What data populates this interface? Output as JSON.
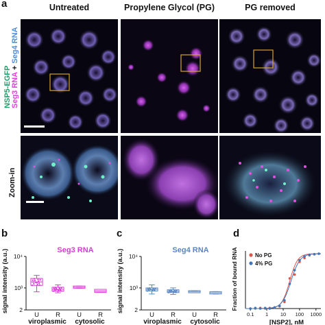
{
  "panel_a": {
    "letter": "a",
    "columns": [
      "Untreated",
      "Propylene Glycol (PG)",
      "PG removed"
    ],
    "row_zoom_label": "Zoom-in",
    "channel_label": {
      "part1": "NSP5-EGFP",
      "part2": "Seg3 RNA",
      "plus": " + ",
      "part3": "Seg4 RNA",
      "colors": {
        "nsp5": "#1f9e6b",
        "seg3": "#e33fe0",
        "seg4": "#4f8fd6",
        "plus": "#111111"
      }
    }
  },
  "panel_b": {
    "letter": "b",
    "title": "Seg3 RNA",
    "ylabel": "signal intensity (a.u.)",
    "color": "#d93ad6",
    "chart_data": {
      "type": "box",
      "yscale": "log",
      "yticks": [
        "2",
        "10³",
        "10⁴"
      ],
      "categories": [
        "U",
        "R",
        "U",
        "R"
      ],
      "groups": [
        "viroplasmic",
        "cytosolic"
      ],
      "boxes": [
        {
          "cat": "U",
          "q1": 1200,
          "median": 1550,
          "q3": 2000,
          "min": 750,
          "max": 2500
        },
        {
          "cat": "R",
          "q1": 790,
          "median": 900,
          "q3": 1050,
          "min": 700,
          "max": 1250
        },
        {
          "cat": "U",
          "q1": 980,
          "median": 1050,
          "q3": 1150,
          "min": 980,
          "max": 1150
        },
        {
          "cat": "R",
          "q1": 720,
          "median": 800,
          "q3": 900,
          "min": 720,
          "max": 900
        }
      ]
    }
  },
  "panel_c": {
    "letter": "c",
    "title": "Seg4 RNA",
    "ylabel": "signal intensity (a.u.)",
    "color": "#5a86c2",
    "chart_data": {
      "type": "box",
      "yscale": "log",
      "yticks": [
        "2",
        "10³",
        "10⁴"
      ],
      "categories": [
        "U",
        "R",
        "U",
        "R"
      ],
      "groups": [
        "viroplasmic",
        "cytosolic"
      ],
      "boxes": [
        {
          "cat": "U",
          "q1": 800,
          "median": 900,
          "q3": 1000,
          "min": 640,
          "max": 1250
        },
        {
          "cat": "R",
          "q1": 710,
          "median": 780,
          "q3": 870,
          "min": 620,
          "max": 1000
        },
        {
          "cat": "U",
          "q1": 700,
          "median": 760,
          "q3": 820,
          "min": 700,
          "max": 820
        },
        {
          "cat": "R",
          "q1": 640,
          "median": 700,
          "q3": 760,
          "min": 640,
          "max": 760
        }
      ]
    }
  },
  "panel_d": {
    "letter": "d",
    "ylabel": "Fraction of bound RNA",
    "xlabel": "[NSP2], nM",
    "chart_data": {
      "type": "scatter",
      "xscale": "log",
      "xticks": [
        "0.1",
        "1",
        "10",
        "100",
        "1000"
      ],
      "xlim": [
        0.05,
        2000
      ],
      "ylim": [
        0,
        1.05
      ],
      "series": [
        {
          "name": "No PG",
          "color": "#e0554a",
          "x": [
            0.1,
            0.2,
            0.4,
            0.8,
            1.5,
            3,
            6,
            12,
            25,
            50,
            100,
            200,
            400,
            800,
            1500
          ],
          "y": [
            0.0,
            0.0,
            0.01,
            0.0,
            0.01,
            0.02,
            0.04,
            0.12,
            0.55,
            0.62,
            0.85,
            0.92,
            0.97,
            0.99,
            1.0
          ]
        },
        {
          "name": "4% PG",
          "color": "#3f76b8",
          "x": [
            0.1,
            0.2,
            0.4,
            0.8,
            1.5,
            3,
            6,
            12,
            25,
            50,
            100,
            200,
            400,
            800,
            1500
          ],
          "y": [
            0.0,
            0.01,
            0.0,
            0.01,
            0.0,
            0.02,
            0.05,
            0.15,
            0.45,
            0.7,
            0.88,
            0.95,
            0.98,
            0.99,
            1.0
          ]
        }
      ]
    }
  }
}
